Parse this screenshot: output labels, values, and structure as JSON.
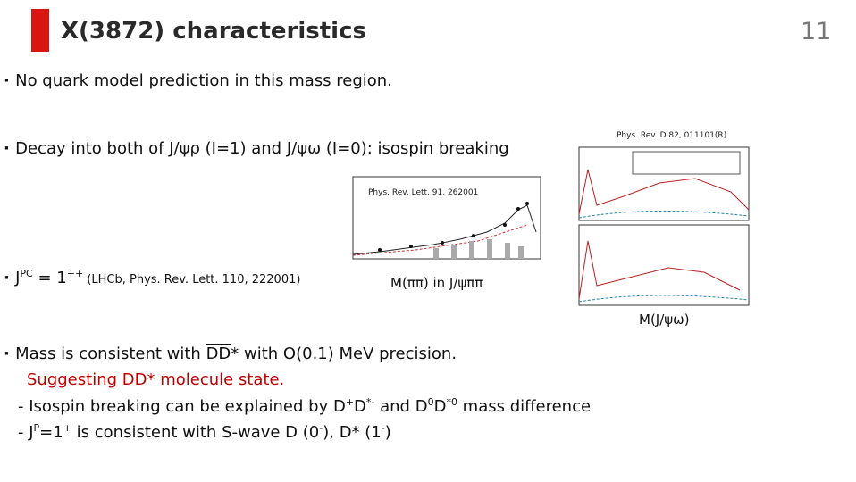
{
  "title": "X(3872) characteristics",
  "page_number": "11",
  "bullets": [
    [
      {
        "text": "No quark model prediction in this mass region."
      }
    ],
    [
      {
        "text": "Decay into both of J/ψρ (I=1) and J/ψω (I=0): isospin breaking"
      }
    ],
    [
      {
        "text": "J"
      },
      {
        "text": "PC",
        "sup": true
      },
      {
        "text": " = 1"
      },
      {
        "text": "++",
        "sup": true
      },
      {
        "text": " (LHCb, Phys. Rev. Lett. 110, 222001)",
        "small": true
      }
    ],
    [
      {
        "text": "Mass is consistent with "
      },
      {
        "text": "DD",
        "overline": true
      },
      {
        "text": "* with O(0.1) MeV precision."
      }
    ]
  ],
  "suggestion": "Suggesting DD* molecule state.",
  "details": [
    [
      {
        "text": "- Isospin breaking can be explained by D"
      },
      {
        "text": "+",
        "sup": true
      },
      {
        "text": "D"
      },
      {
        "text": "*-",
        "sup": true
      },
      {
        "text": " and D"
      },
      {
        "text": "0",
        "sup": true
      },
      {
        "text": "D"
      },
      {
        "text": "*0",
        "sup": true
      },
      {
        "text": " mass difference"
      }
    ],
    [
      {
        "text": "- J"
      },
      {
        "text": "P",
        "sup": true
      },
      {
        "text": "=1"
      },
      {
        "text": "+",
        "sup": true
      },
      {
        "text": " is consistent with S-wave D (0"
      },
      {
        "text": "-",
        "sup": true
      },
      {
        "text": "), D* (1"
      },
      {
        "text": "-",
        "sup": true
      },
      {
        "text": ")"
      }
    ]
  ],
  "figures": [
    {
      "caption": "Phys. Rev. Lett. 91, 262001",
      "xlabel": "M(ππ) in J/ψππ"
    },
    {
      "caption": "Phys. Rev. D 82, 011101(R)",
      "xlabel": "M(J/ψω)"
    }
  ]
}
